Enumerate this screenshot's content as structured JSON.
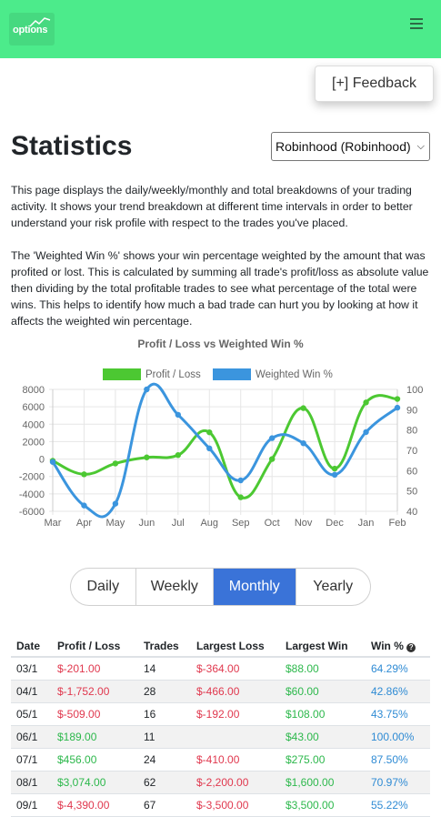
{
  "navbar": {
    "logo_text": "options",
    "brand_color": "#4ceb8b",
    "menu_icon": "hamburger-icon"
  },
  "feedback": {
    "label": "[+] Feedback"
  },
  "page": {
    "title": "Statistics",
    "broker_selected": "Robinhood (Robinhood)",
    "description_1": "This page displays the daily/weekly/monthly and total breakdowns of your trading activity. It shows your trend breakdown at different time intervals in order to better understand your risk profile with respect to the trades you've placed.",
    "description_2": "The 'Weighted Win %' shows your win percentage weighted by the amount that was profited or lost. This is calculated by summing all trade's profit/loss as absolute value then dividing by the total profitable trades to see what percentage of the total were wins. This helps to identify how much a bad trade can hurt you by looking at how it affects the weighted win percentage."
  },
  "chart_data": {
    "type": "line",
    "title": "Profit / Loss vs Weighted Win %",
    "categories": [
      "Mar",
      "Apr",
      "May",
      "Jun",
      "Jul",
      "Aug",
      "Sep",
      "Oct",
      "Nov",
      "Dec",
      "Jan",
      "Feb"
    ],
    "series": [
      {
        "name": "Profit / Loss",
        "color": "#4cc832",
        "axis": "left",
        "values": [
          -201,
          -1752,
          -509,
          189,
          456,
          3074,
          -4390,
          0,
          5850,
          -1100,
          6500,
          6900
        ]
      },
      {
        "name": "Weighted Win %",
        "color": "#3b95de",
        "axis": "right",
        "values": [
          64.29,
          42.86,
          43.75,
          100.0,
          87.5,
          70.97,
          55.22,
          76.0,
          73.5,
          58.0,
          79.0,
          91.0
        ]
      }
    ],
    "y_left": {
      "ticks": [
        8000,
        6000,
        4000,
        2000,
        0,
        -2000,
        -4000,
        -6000
      ],
      "ylim": [
        -6000,
        8000
      ]
    },
    "y_right": {
      "ticks": [
        100,
        90,
        80,
        70,
        60,
        50,
        40
      ],
      "ylim": [
        40,
        100
      ]
    },
    "legend": "top",
    "grid": true
  },
  "period_tabs": [
    {
      "label": "Daily",
      "active": false
    },
    {
      "label": "Weekly",
      "active": false
    },
    {
      "label": "Monthly",
      "active": true
    },
    {
      "label": "Yearly",
      "active": false
    }
  ],
  "table": {
    "headers": [
      "Date",
      "Profit / Loss",
      "Trades",
      "Largest Loss",
      "Largest Win",
      "Win %"
    ],
    "rows": [
      {
        "date": "03/1",
        "pl": "$-201.00",
        "pl_sign": "neg",
        "trades": "14",
        "loss": "$-364.00",
        "win": "$88.00",
        "winpct": "64.29%"
      },
      {
        "date": "04/1",
        "pl": "$-1,752.00",
        "pl_sign": "neg",
        "trades": "28",
        "loss": "$-466.00",
        "win": "$60.00",
        "winpct": "42.86%"
      },
      {
        "date": "05/1",
        "pl": "$-509.00",
        "pl_sign": "neg",
        "trades": "16",
        "loss": "$-192.00",
        "win": "$108.00",
        "winpct": "43.75%"
      },
      {
        "date": "06/1",
        "pl": "$189.00",
        "pl_sign": "pos",
        "trades": "11",
        "loss": "",
        "win": "$43.00",
        "winpct": "100.00%"
      },
      {
        "date": "07/1",
        "pl": "$456.00",
        "pl_sign": "pos",
        "trades": "24",
        "loss": "$-410.00",
        "win": "$275.00",
        "winpct": "87.50%"
      },
      {
        "date": "08/1",
        "pl": "$3,074.00",
        "pl_sign": "pos",
        "trades": "62",
        "loss": "$-2,200.00",
        "win": "$1,600.00",
        "winpct": "70.97%"
      },
      {
        "date": "09/1",
        "pl": "$-4,390.00",
        "pl_sign": "neg",
        "trades": "67",
        "loss": "$-3,500.00",
        "win": "$3,500.00",
        "winpct": "55.22%"
      }
    ]
  }
}
